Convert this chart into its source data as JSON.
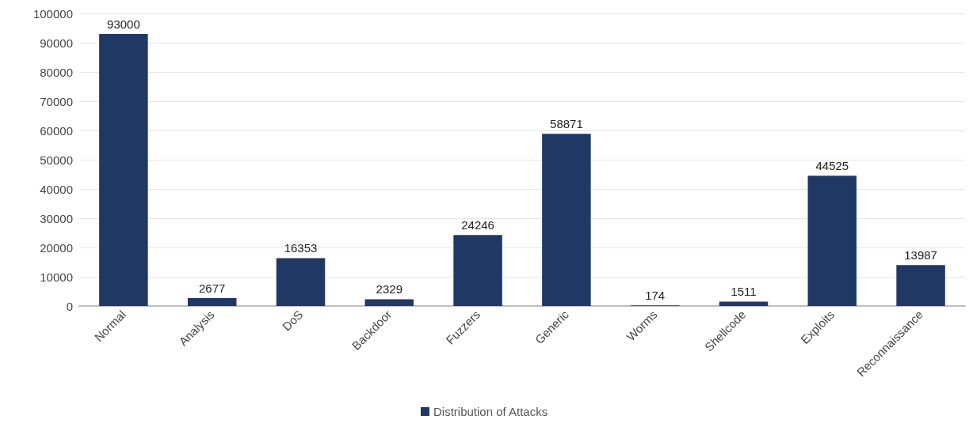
{
  "chart_data": {
    "type": "bar",
    "categories": [
      "Normal",
      "Analysis",
      "DoS",
      "Backdoor",
      "Fuzzers",
      "Generic",
      "Worms",
      "Shellcode",
      "Exploits",
      "Reconnaissance"
    ],
    "series": [
      {
        "name": "Distribution of Attacks",
        "color": "#203864",
        "values": [
          93000,
          2677,
          16353,
          2329,
          24246,
          58871,
          174,
          1511,
          44525,
          13987
        ]
      }
    ],
    "ylim": [
      0,
      100000
    ],
    "yticks": [
      0,
      10000,
      20000,
      30000,
      40000,
      50000,
      60000,
      70000,
      80000,
      90000,
      100000
    ],
    "grid": "y",
    "legend": "bottom",
    "data_labels": true
  }
}
